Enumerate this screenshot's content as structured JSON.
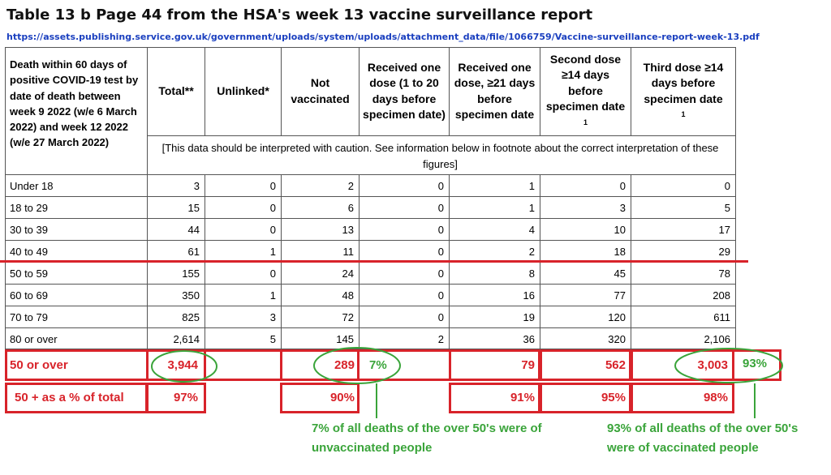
{
  "title": "Table 13 b Page 44 from the HSA's week 13 vaccine surveillance report",
  "url": "https://assets.publishing.service.gov.uk/government/uploads/system/uploads/attachment_data/file/1066759/Vaccine-surveillance-report-week-13.pdf",
  "header": {
    "row_label": "Death within 60 days of positive COVID-19 test by date of death between week 9 2022 (w/e 6 March 2022) and week 12 2022 (w/e 27 March 2022)",
    "columns": [
      "Total**",
      "Unlinked*",
      "Not vaccinated",
      "Received one dose (1 to 20 days before specimen date)",
      "Received one dose, ≥21 days before specimen date",
      "Second dose ≥14 days before specimen date",
      "Third dose ≥14 days before specimen date"
    ],
    "footnote_mark": "1",
    "caution": "[This data should be interpreted with caution. See information below in footnote about the correct interpretation of these figures]"
  },
  "rows": [
    {
      "label": "Under 18",
      "values": [
        "3",
        "0",
        "2",
        "0",
        "1",
        "0",
        "0"
      ]
    },
    {
      "label": "18 to 29",
      "values": [
        "15",
        "0",
        "6",
        "0",
        "1",
        "3",
        "5"
      ]
    },
    {
      "label": "30 to 39",
      "values": [
        "44",
        "0",
        "13",
        "0",
        "4",
        "10",
        "17"
      ]
    },
    {
      "label": "40 to 49",
      "values": [
        "61",
        "1",
        "11",
        "0",
        "2",
        "18",
        "29"
      ]
    },
    {
      "label": "50 to 59",
      "values": [
        "155",
        "0",
        "24",
        "0",
        "8",
        "45",
        "78"
      ]
    },
    {
      "label": "60 to 69",
      "values": [
        "350",
        "1",
        "48",
        "0",
        "16",
        "77",
        "208"
      ]
    },
    {
      "label": "70 to 79",
      "values": [
        "825",
        "3",
        "72",
        "0",
        "19",
        "120",
        "611"
      ]
    },
    {
      "label": "80 or over",
      "values": [
        "2,614",
        "5",
        "145",
        "2",
        "36",
        "320",
        "2,106"
      ]
    }
  ],
  "over50": {
    "label": "50 or over",
    "total": "3,944",
    "not_vaccinated": "289",
    "unvax_pct": "7%",
    "one_dose_21": "79",
    "second_dose": "562",
    "third_dose": "3,003",
    "vax_pct": "93%"
  },
  "pct_row": {
    "label": "50 + as a % of total",
    "total": "97%",
    "not_vaccinated": "90%",
    "one_dose_21": "91%",
    "second_dose": "95%",
    "third_dose": "98%"
  },
  "notes": {
    "unvax": "7% of all deaths of the over 50's were of unvaccinated people",
    "vax": "93% of all deaths of the over 50's were of vaccinated people"
  },
  "colors": {
    "annotation_red": "#d8232a",
    "annotation_green": "#3aa43a",
    "link_blue": "#1a3fbf"
  }
}
